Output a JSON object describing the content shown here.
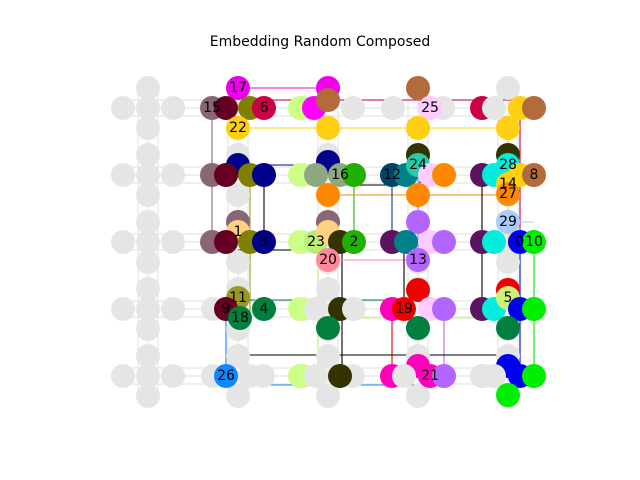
{
  "title": "Embedding Random Composed",
  "colors": {
    "background_node": "#e5e5e5",
    "grid_line": "#e5e5e5"
  },
  "nodes": [
    {
      "id": "0",
      "color": "#0000ee"
    },
    {
      "id": "1",
      "color": "#ffd27f"
    },
    {
      "id": "2",
      "color": "#22b000"
    },
    {
      "id": "3",
      "color": "#00008b"
    },
    {
      "id": "4",
      "color": "#007f3f"
    },
    {
      "id": "5",
      "color": "#cdf07a"
    },
    {
      "id": "6",
      "color": "#cc0044"
    },
    {
      "id": "7",
      "color": "#660022"
    },
    {
      "id": "8",
      "color": "#b36b3b"
    },
    {
      "id": "9",
      "color": "#660022"
    },
    {
      "id": "10",
      "color": "#00ee00"
    },
    {
      "id": "11",
      "color": "#999922"
    },
    {
      "id": "12",
      "color": "#004466"
    },
    {
      "id": "13",
      "color": "#b366ff"
    },
    {
      "id": "14",
      "color": "#ffd011"
    },
    {
      "id": "15",
      "color": "#886677"
    },
    {
      "id": "16",
      "color": "#8fa87f"
    },
    {
      "id": "17",
      "color": "#ee00ee"
    },
    {
      "id": "18",
      "color": "#007f3f"
    },
    {
      "id": "19",
      "color": "#ee0000"
    },
    {
      "id": "20",
      "color": "#ff8899"
    },
    {
      "id": "21",
      "color": "#ff00bb"
    },
    {
      "id": "22",
      "color": "#ffd011"
    },
    {
      "id": "23",
      "color": "#bbee77"
    },
    {
      "id": "24",
      "color": "#22ccaa"
    },
    {
      "id": "25",
      "color": "#ffccff"
    },
    {
      "id": "26",
      "color": "#1188ff"
    },
    {
      "id": "27",
      "color": "#ff8800"
    },
    {
      "id": "28",
      "color": "#00eedd"
    },
    {
      "id": "29",
      "color": "#aaccff"
    }
  ]
}
